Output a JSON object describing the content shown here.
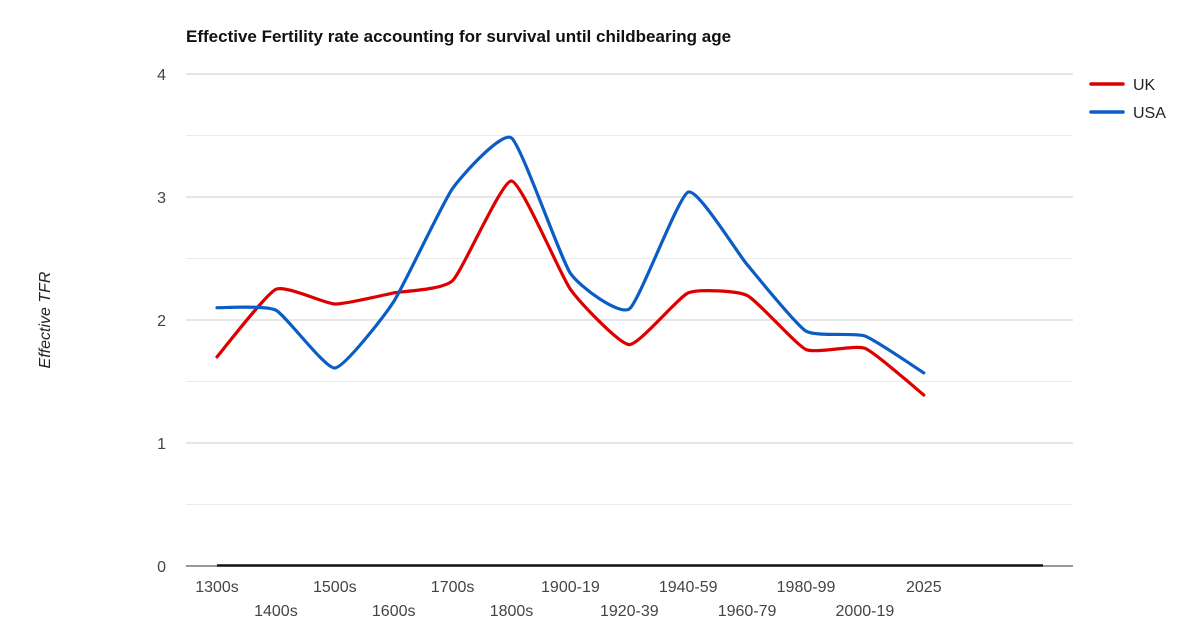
{
  "chart_data": {
    "type": "line",
    "title": "Effective Fertility rate accounting for survival until childbearing age",
    "xlabel": "",
    "ylabel": "Effective TFR",
    "categories": [
      "1300s",
      "1400s",
      "1500s",
      "1600s",
      "1700s",
      "1800s",
      "1900-19",
      "1920-39",
      "1940-59",
      "1960-79",
      "1980-99",
      "2000-19",
      "2025"
    ],
    "ylim": [
      0,
      4
    ],
    "yticks": [
      "0",
      "1",
      "2",
      "3",
      "4"
    ],
    "grid": true,
    "legend_position": "top-right",
    "series": [
      {
        "name": "UK",
        "color": "#dd0000",
        "values": [
          1.7,
          2.25,
          2.13,
          2.22,
          2.32,
          3.13,
          2.25,
          1.8,
          2.22,
          2.2,
          1.76,
          1.77,
          1.39
        ]
      },
      {
        "name": "USA",
        "color": "#0b5cc4",
        "values": [
          2.1,
          2.08,
          1.61,
          2.15,
          3.07,
          3.48,
          2.38,
          2.09,
          3.04,
          2.45,
          1.91,
          1.87,
          1.57
        ]
      }
    ]
  }
}
